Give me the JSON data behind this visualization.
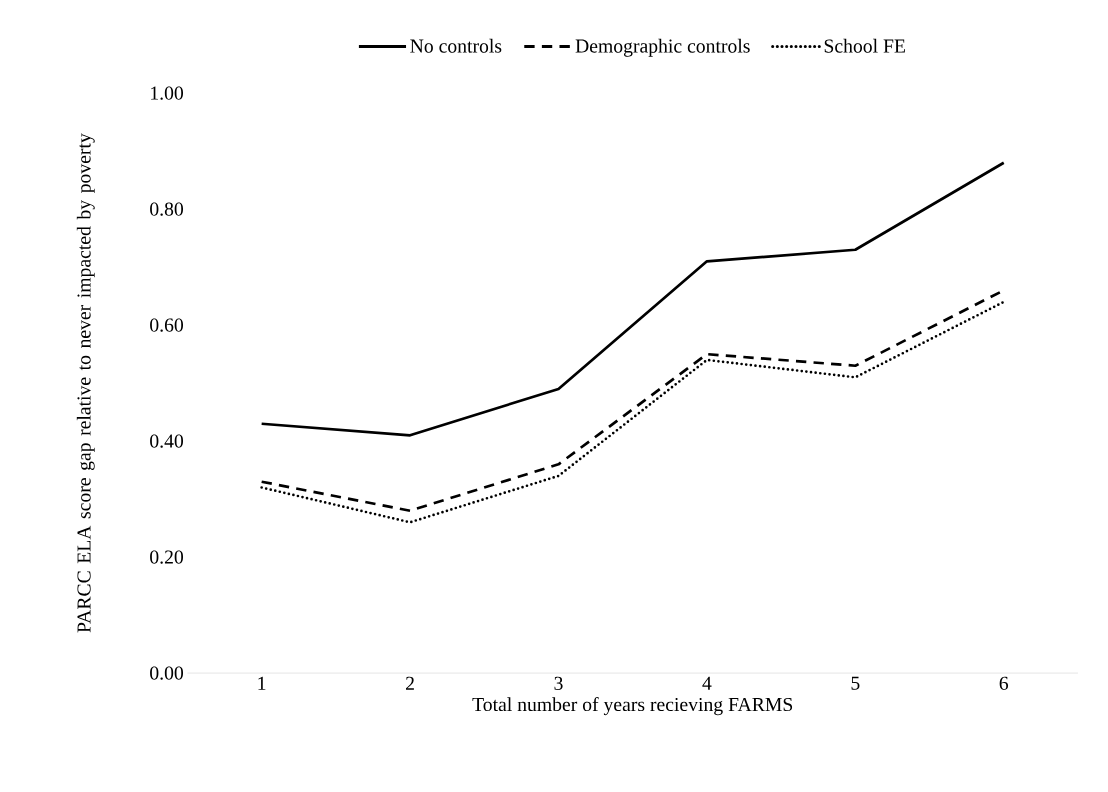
{
  "chart_data": {
    "type": "line",
    "xlabel": "Total number of years recieving FARMS",
    "ylabel": "PARCC ELA score gap relative to never impacted by poverty",
    "categories": [
      "1",
      "2",
      "3",
      "4",
      "5",
      "6"
    ],
    "series": [
      {
        "name": "No controls",
        "color": "#000000",
        "line_style": "solid",
        "values": [
          0.43,
          0.41,
          0.49,
          0.71,
          0.73,
          0.88
        ]
      },
      {
        "name": "Demographic controls",
        "color": "#000000",
        "line_style": "dashed",
        "values": [
          0.33,
          0.28,
          0.36,
          0.55,
          0.53,
          0.66
        ]
      },
      {
        "name": "School FE",
        "color": "#000000",
        "line_style": "dotted",
        "values": [
          0.32,
          0.26,
          0.34,
          0.54,
          0.51,
          0.64
        ]
      }
    ],
    "ylim": [
      0,
      1
    ],
    "yticks": [
      {
        "value": 0,
        "label": "0.00"
      },
      {
        "value": 0.2,
        "label": "0.20"
      },
      {
        "value": 0.4,
        "label": "0.40"
      },
      {
        "value": 0.6,
        "label": "0.60"
      },
      {
        "value": 0.8,
        "label": "0.80"
      },
      {
        "value": 1,
        "label": "1.00"
      }
    ],
    "grid": false,
    "legend": "top",
    "marker": "none"
  }
}
